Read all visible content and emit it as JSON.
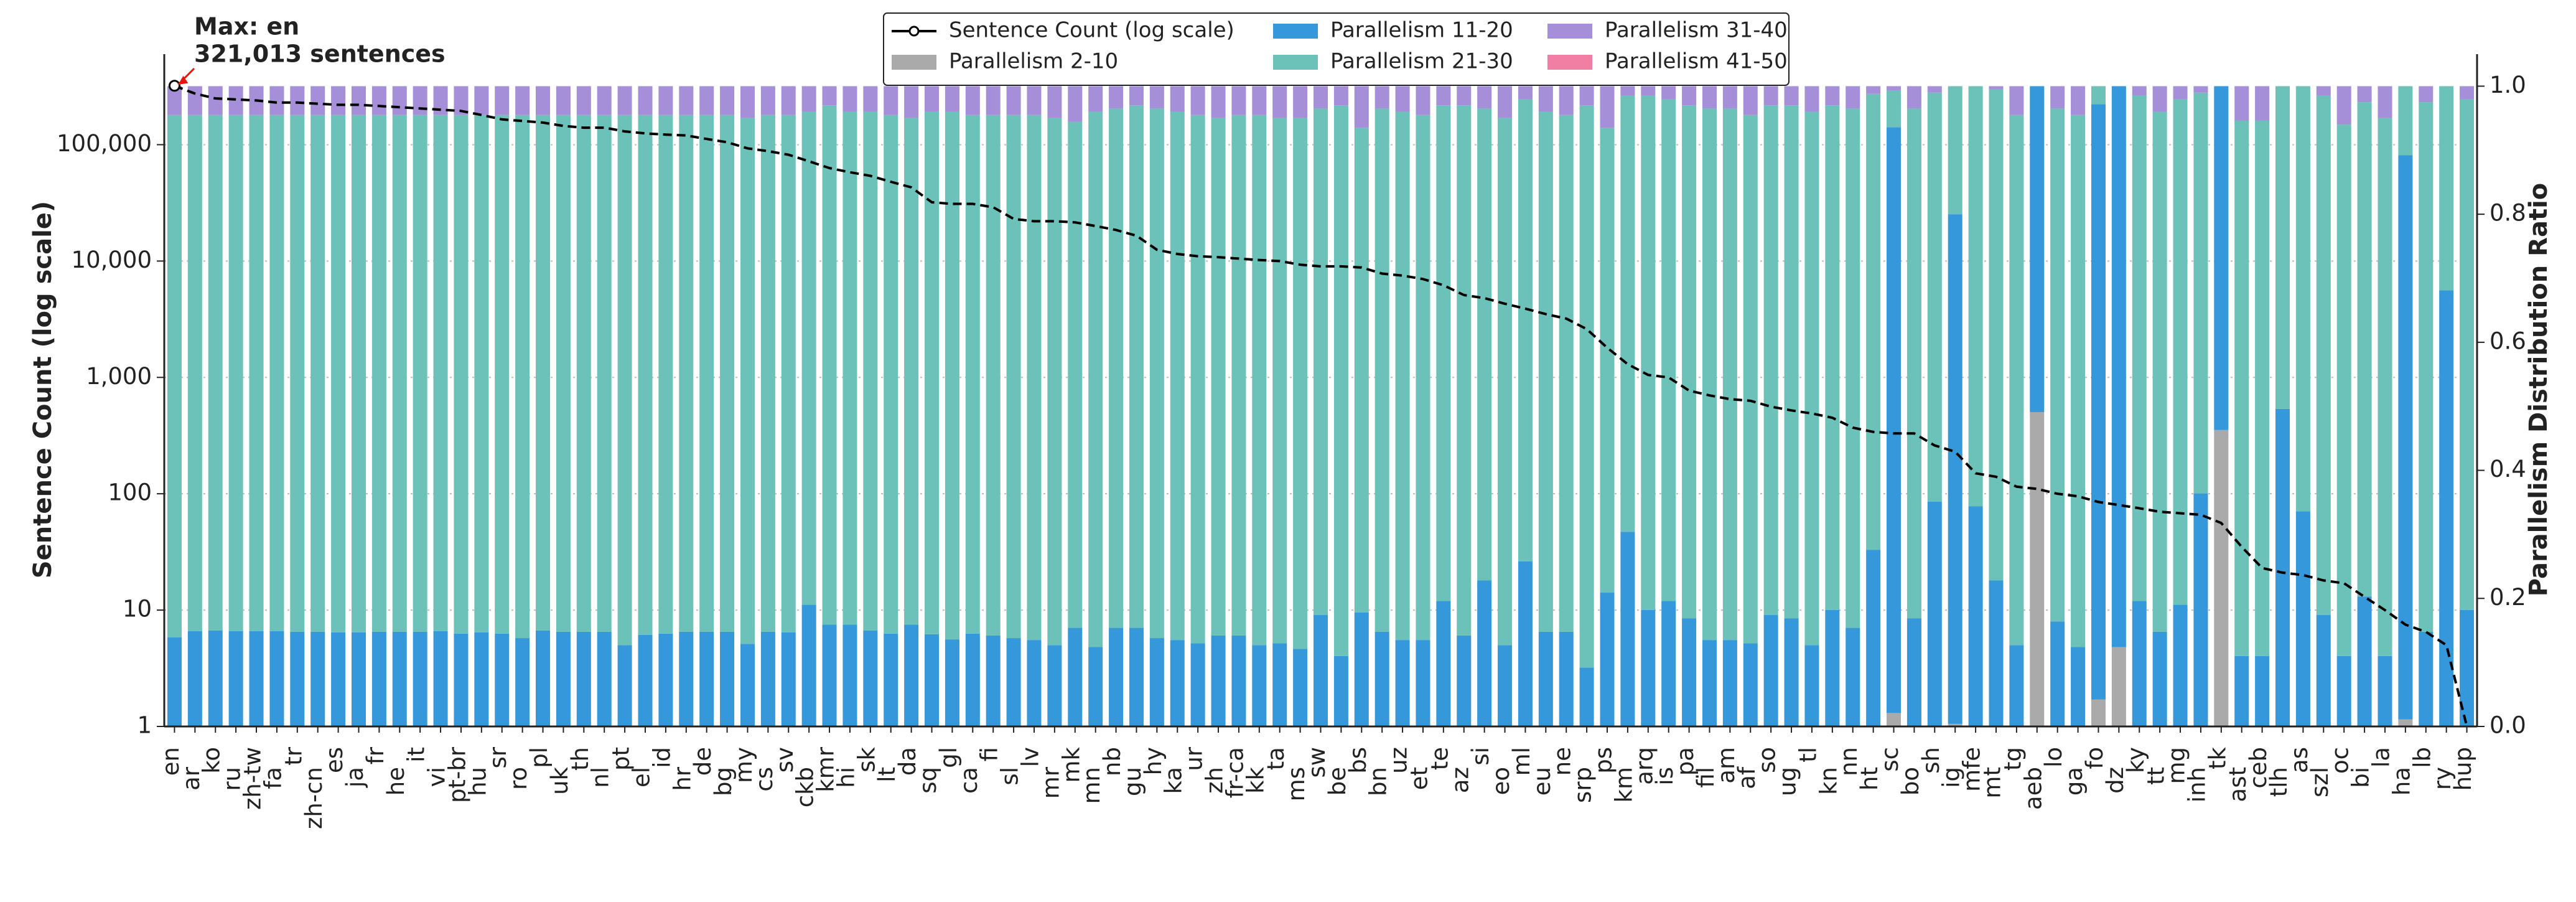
{
  "chart_data": {
    "type": "bar",
    "ylabel": "Sentence Count (log scale)",
    "y2label": "Parallelism Distribution Ratio",
    "annotation": {
      "text": [
        "Max: en",
        "321,013 sentences"
      ],
      "color": "#e8140f"
    },
    "log_y": true,
    "grid": true,
    "stacked": true,
    "legend": "upper center",
    "ylim": [
      1,
      600000
    ],
    "yticks": [
      1,
      10,
      100,
      {
        "value": 1000,
        "label": "1,000"
      },
      {
        "value": 10000,
        "label": "10,000"
      },
      {
        "value": 100000,
        "label": "100,000"
      }
    ],
    "y2lim": [
      0,
      1.05
    ],
    "y2ticks": [
      {
        "value": 0,
        "label": "0.0"
      },
      0.2,
      0.4,
      0.6,
      0.8,
      {
        "value": 1,
        "label": "1.0"
      }
    ],
    "categories": [
      "en",
      "ar",
      "ko",
      "ru",
      "zh-tw",
      "fa",
      "tr",
      "zh-cn",
      "es",
      "ja",
      "fr",
      "he",
      "it",
      "vi",
      "pt-br",
      "hu",
      "sr",
      "ro",
      "pl",
      "uk",
      "th",
      "nl",
      "pt",
      "el",
      "id",
      "hr",
      "de",
      "bg",
      "my",
      "cs",
      "sv",
      "ckb",
      "kmr",
      "hi",
      "sk",
      "lt",
      "da",
      "sq",
      "gl",
      "ca",
      "fi",
      "sl",
      "lv",
      "mr",
      "mk",
      "mn",
      "nb",
      "gu",
      "hy",
      "ka",
      "ur",
      "zh",
      "fr-ca",
      "kk",
      "ta",
      "ms",
      "sw",
      "be",
      "bs",
      "bn",
      "uz",
      "et",
      "te",
      "az",
      "si",
      "eo",
      "ml",
      "eu",
      "ne",
      "srp",
      "ps",
      "km",
      "arq",
      "is",
      "pa",
      "fil",
      "am",
      "af",
      "so",
      "ug",
      "tl",
      "kn",
      "nn",
      "ht",
      "sc",
      "bo",
      "sh",
      "ig",
      "mfe",
      "mt",
      "tg",
      "aeb",
      "lo",
      "ga",
      "fo",
      "dz",
      "ky",
      "tt",
      "mg",
      "inh",
      "tk",
      "ast",
      "ceb",
      "tlh",
      "as",
      "szl",
      "oc",
      "bi",
      "la",
      "ha",
      "lb",
      "ry",
      "hup"
    ],
    "series": [
      {
        "name": "Sentence Count (log scale)",
        "type": "line",
        "axis": "y",
        "color": "#000000",
        "values": [
          321013,
          275000,
          250000,
          245000,
          240000,
          230000,
          230000,
          225000,
          220000,
          220000,
          215000,
          210000,
          205000,
          200000,
          195000,
          180000,
          165000,
          160000,
          155000,
          145000,
          140000,
          140000,
          130000,
          125000,
          122000,
          120000,
          112000,
          105000,
          93000,
          88000,
          82000,
          72000,
          63000,
          58000,
          54000,
          48000,
          43000,
          32000,
          31000,
          31000,
          29000,
          23000,
          22000,
          22000,
          21500,
          20000,
          18500,
          16500,
          12500,
          11500,
          11000,
          10800,
          10500,
          10200,
          10000,
          9300,
          9000,
          9000,
          8800,
          7800,
          7500,
          7000,
          6200,
          5100,
          4800,
          4300,
          3900,
          3500,
          3200,
          2600,
          1800,
          1300,
          1050,
          1000,
          770,
          700,
          650,
          630,
          560,
          520,
          490,
          450,
          370,
          340,
          330,
          330,
          260,
          230,
          150,
          140,
          115,
          110,
          100,
          95,
          85,
          80,
          75,
          70,
          68,
          66,
          56,
          35,
          23,
          21,
          20,
          18,
          17,
          13,
          10,
          7.5,
          6.5,
          5,
          1
        ]
      },
      {
        "name": "Parallelism 2-10",
        "type": "bar",
        "axis": "y2",
        "color": "#aaaaaa",
        "values": [
          0,
          0,
          0,
          0,
          0,
          0,
          0,
          0,
          0,
          0,
          0,
          0,
          0,
          0,
          0,
          0,
          0,
          0,
          0,
          0,
          0,
          0,
          0,
          0,
          0,
          0,
          0,
          0,
          0,
          0,
          0,
          0,
          0,
          0,
          0,
          0,
          0,
          0,
          0,
          0,
          0,
          0,
          0,
          0,
          0,
          0,
          0,
          0,
          0,
          0,
          0,
          0,
          0,
          0,
          0,
          0,
          0,
          0,
          0,
          0,
          0,
          0,
          0,
          0,
          0,
          0,
          0,
          0,
          0,
          0,
          0,
          0,
          0,
          0,
          0,
          0,
          0,
          0,
          0,
          0,
          0,
          0,
          0,
          0,
          0.021,
          0,
          0,
          0.004,
          0,
          0,
          0,
          0.491,
          0,
          0,
          0.042,
          0.124,
          0,
          0,
          0,
          0,
          0.463,
          0,
          0,
          0,
          0,
          0,
          0,
          0,
          0,
          0.011,
          0,
          0,
          0
        ]
      },
      {
        "name": "Parallelism 11-20",
        "type": "bar",
        "axis": "y2",
        "color": "#3498db",
        "values": [
          0.139,
          0.149,
          0.15,
          0.149,
          0.149,
          0.149,
          0.148,
          0.148,
          0.147,
          0.147,
          0.148,
          0.148,
          0.148,
          0.149,
          0.145,
          0.147,
          0.145,
          0.138,
          0.15,
          0.148,
          0.148,
          0.148,
          0.127,
          0.143,
          0.145,
          0.148,
          0.148,
          0.148,
          0.129,
          0.148,
          0.147,
          0.19,
          0.159,
          0.159,
          0.15,
          0.145,
          0.159,
          0.144,
          0.136,
          0.145,
          0.142,
          0.138,
          0.135,
          0.127,
          0.154,
          0.124,
          0.154,
          0.154,
          0.138,
          0.135,
          0.13,
          0.142,
          0.142,
          0.127,
          0.13,
          0.121,
          0.174,
          0.11,
          0.178,
          0.148,
          0.135,
          0.135,
          0.196,
          0.142,
          0.228,
          0.127,
          0.258,
          0.148,
          0.148,
          0.092,
          0.209,
          0.304,
          0.182,
          0.196,
          0.169,
          0.135,
          0.135,
          0.13,
          0.174,
          0.169,
          0.127,
          0.182,
          0.154,
          0.276,
          0.915,
          0.169,
          0.351,
          0.796,
          0.344,
          0.228,
          0.127,
          0.509,
          0.164,
          0.124,
          0.93,
          0.876,
          0.196,
          0.148,
          0.19,
          0.364,
          0.537,
          0.11,
          0.11,
          0.496,
          0.336,
          0.174,
          0.11,
          0.203,
          0.11,
          0.881,
          0.148,
          0.681,
          0.182
        ]
      },
      {
        "name": "Parallelism 21-30",
        "type": "bar",
        "axis": "y2",
        "color": "#6cc2b8",
        "values": [
          0.816,
          0.806,
          0.805,
          0.806,
          0.806,
          0.806,
          0.807,
          0.807,
          0.808,
          0.808,
          0.807,
          0.807,
          0.807,
          0.806,
          0.81,
          0.808,
          0.81,
          0.817,
          0.805,
          0.807,
          0.807,
          0.807,
          0.828,
          0.812,
          0.81,
          0.807,
          0.807,
          0.807,
          0.821,
          0.807,
          0.808,
          0.77,
          0.811,
          0.801,
          0.81,
          0.81,
          0.791,
          0.816,
          0.824,
          0.81,
          0.813,
          0.817,
          0.82,
          0.823,
          0.791,
          0.836,
          0.811,
          0.816,
          0.827,
          0.825,
          0.825,
          0.808,
          0.813,
          0.828,
          0.82,
          0.829,
          0.791,
          0.86,
          0.757,
          0.817,
          0.825,
          0.82,
          0.774,
          0.828,
          0.737,
          0.823,
          0.722,
          0.812,
          0.807,
          0.878,
          0.726,
          0.681,
          0.803,
          0.784,
          0.801,
          0.83,
          0.83,
          0.825,
          0.796,
          0.801,
          0.833,
          0.788,
          0.811,
          0.712,
          0.057,
          0.796,
          0.639,
          0.2,
          0.656,
          0.767,
          0.828,
          0,
          0.801,
          0.831,
          0.028,
          0,
          0.789,
          0.812,
          0.79,
          0.626,
          0,
          0.836,
          0.836,
          0.504,
          0.664,
          0.811,
          0.83,
          0.772,
          0.84,
          0.108,
          0.827,
          0.319,
          0.798
        ]
      },
      {
        "name": "Parallelism 31-40",
        "type": "bar",
        "axis": "y2",
        "color": "#a68fd9",
        "values": [
          0.045,
          0.045,
          0.045,
          0.045,
          0.045,
          0.045,
          0.045,
          0.045,
          0.045,
          0.045,
          0.045,
          0.045,
          0.045,
          0.045,
          0.045,
          0.045,
          0.045,
          0.045,
          0.045,
          0.045,
          0.045,
          0.045,
          0.045,
          0.045,
          0.045,
          0.045,
          0.045,
          0.045,
          0.05,
          0.045,
          0.045,
          0.04,
          0.03,
          0.04,
          0.04,
          0.045,
          0.05,
          0.04,
          0.04,
          0.045,
          0.045,
          0.045,
          0.045,
          0.05,
          0.055,
          0.04,
          0.035,
          0.03,
          0.035,
          0.04,
          0.045,
          0.05,
          0.045,
          0.045,
          0.05,
          0.05,
          0.035,
          0.03,
          0.065,
          0.035,
          0.04,
          0.045,
          0.03,
          0.03,
          0.035,
          0.05,
          0.02,
          0.04,
          0.045,
          0.03,
          0.065,
          0.015,
          0.015,
          0.02,
          0.03,
          0.035,
          0.035,
          0.045,
          0.03,
          0.03,
          0.04,
          0.03,
          0.035,
          0.012,
          0.007,
          0.035,
          0.01,
          0,
          0,
          0.005,
          0.045,
          0,
          0.035,
          0.045,
          0,
          0,
          0.015,
          0.04,
          0.02,
          0.01,
          0,
          0.054,
          0.054,
          0,
          0,
          0.015,
          0.06,
          0.025,
          0.05,
          0,
          0.025,
          0,
          0.02
        ]
      },
      {
        "name": "Parallelism 41-50",
        "type": "bar",
        "axis": "y2",
        "color": "#f07fa3",
        "values": [
          0,
          0,
          0,
          0,
          0,
          0,
          0,
          0,
          0,
          0,
          0,
          0,
          0,
          0,
          0,
          0,
          0,
          0,
          0,
          0,
          0,
          0,
          0,
          0,
          0,
          0,
          0,
          0,
          0,
          0,
          0,
          0,
          0,
          0,
          0,
          0,
          0,
          0,
          0,
          0,
          0,
          0,
          0,
          0,
          0,
          0,
          0,
          0,
          0,
          0,
          0,
          0,
          0,
          0,
          0,
          0,
          0,
          0,
          0,
          0,
          0,
          0,
          0,
          0,
          0,
          0,
          0,
          0,
          0,
          0,
          0,
          0,
          0,
          0,
          0,
          0,
          0,
          0,
          0,
          0,
          0,
          0,
          0,
          0,
          0,
          0,
          0,
          0,
          0,
          0,
          0,
          0,
          0,
          0,
          0,
          0,
          0,
          0,
          0,
          0,
          0,
          0,
          0,
          0,
          0,
          0,
          0,
          0,
          0,
          0,
          0,
          0,
          0
        ]
      }
    ]
  }
}
